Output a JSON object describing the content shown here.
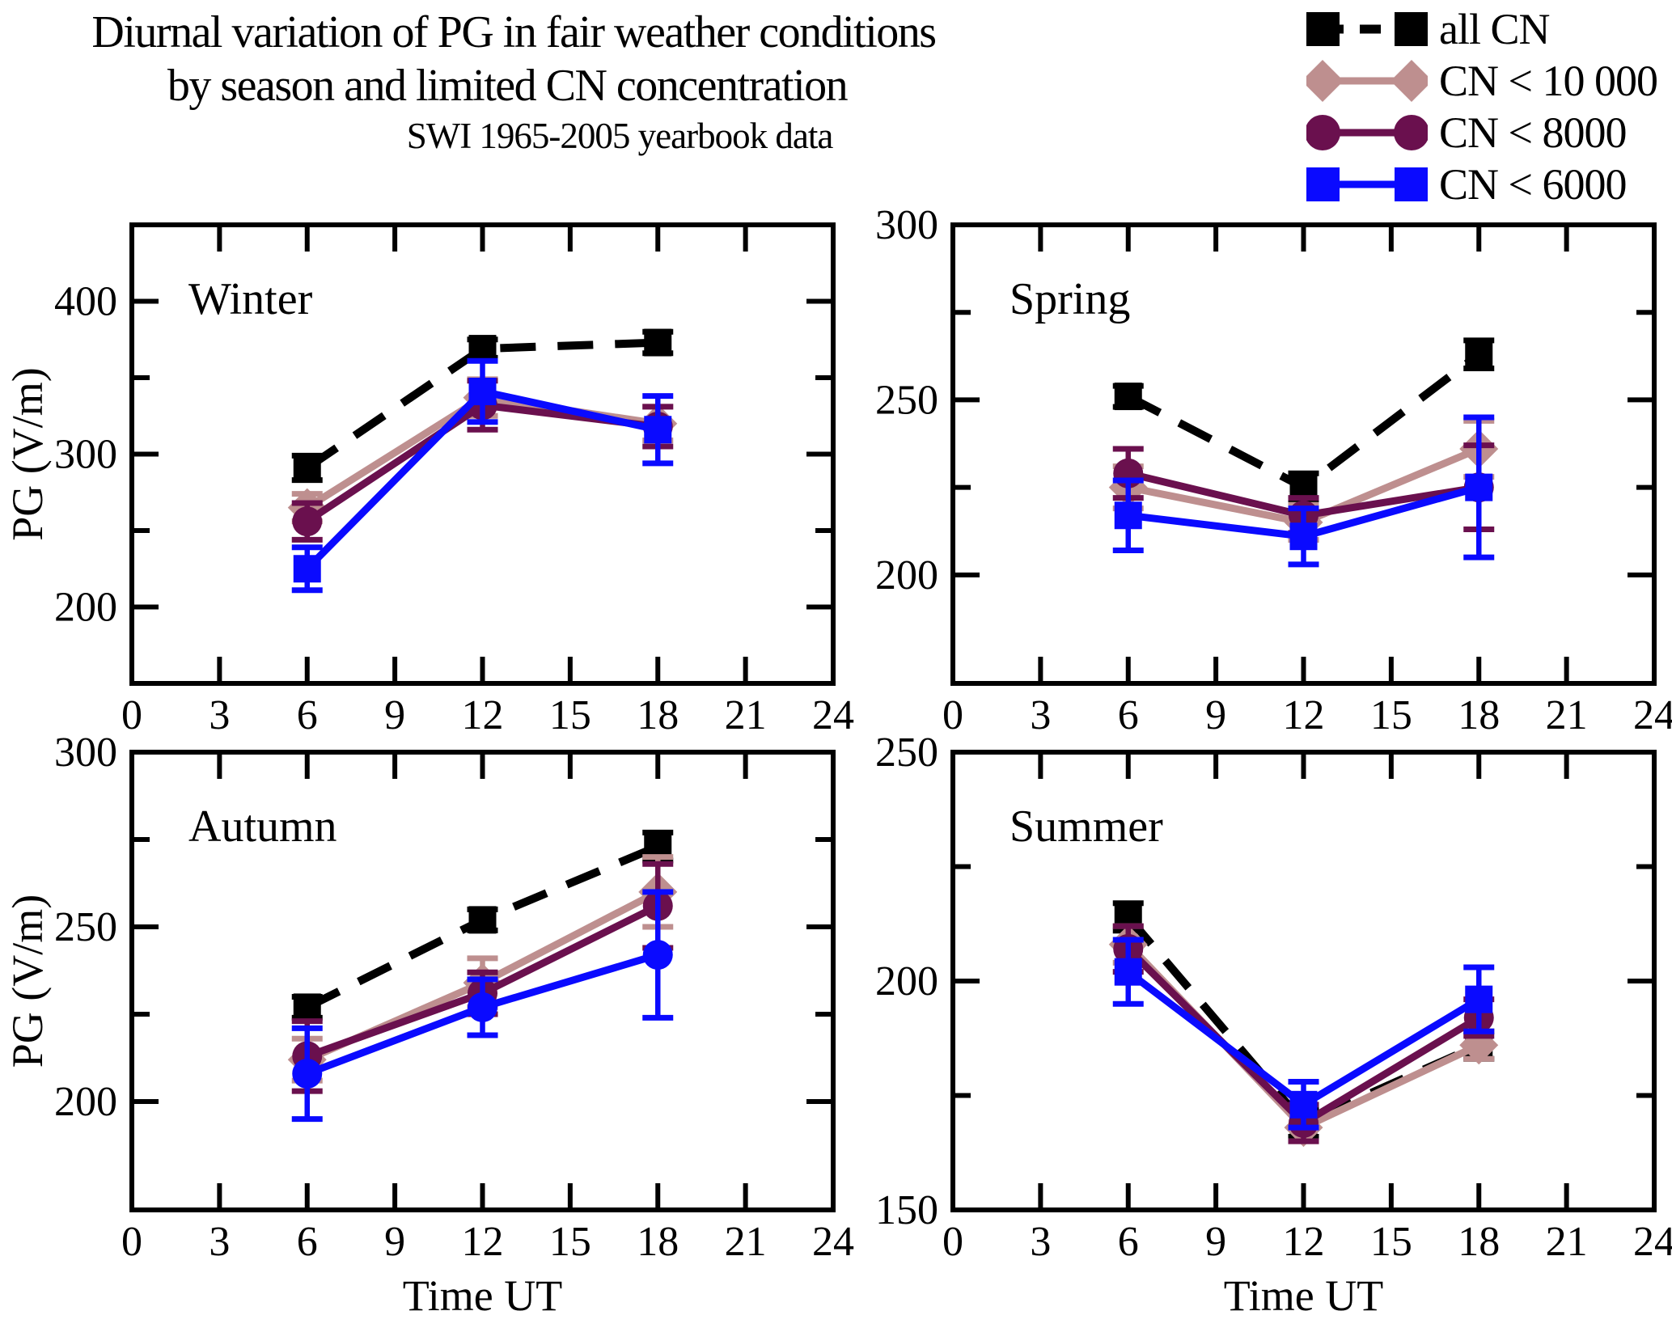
{
  "title": {
    "line1": "Diurnal variation of PG in fair weather conditions",
    "line2": "by season and limited CN concentration",
    "subtitle": "SWI 1965-2005 yearbook data"
  },
  "axis_labels": {
    "x": "Time UT",
    "y": "PG (V/m)"
  },
  "legend": {
    "items": [
      {
        "label": "all CN",
        "color": "#000000",
        "marker": "square",
        "line": "dashed"
      },
      {
        "label": "CN < 10 000",
        "color": "#BE8F8F",
        "marker": "diamond",
        "line": "solid"
      },
      {
        "label": "CN < 8000",
        "color": "#6A104E",
        "marker": "circle",
        "line": "solid"
      },
      {
        "label": "CN < 6000",
        "color": "#0A0AFF",
        "marker": "square",
        "line": "solid"
      }
    ]
  },
  "chart_data": [
    {
      "type": "line",
      "panel": "winter",
      "title": "Winter",
      "xlabel": "",
      "ylabel": "PG (V/m)",
      "x": [
        6,
        12,
        18
      ],
      "xlim": [
        0,
        24
      ],
      "ylim": [
        150,
        450
      ],
      "xticks": [
        0,
        3,
        6,
        9,
        12,
        15,
        18,
        21,
        24
      ],
      "yticks_major": [
        200,
        300,
        400
      ],
      "yticks_minor": [
        250,
        350
      ],
      "grid": false,
      "series": [
        {
          "name": "all CN",
          "color": "#000000",
          "marker": "square",
          "line": "dashed",
          "values": [
            291,
            369,
            373
          ],
          "errors": [
            8,
            6,
            7
          ]
        },
        {
          "name": "CN < 10 000",
          "color": "#BE8F8F",
          "marker": "diamond",
          "line": "solid",
          "values": [
            265,
            337,
            320
          ],
          "errors": [
            9,
            12,
            11
          ]
        },
        {
          "name": "CN < 8000",
          "color": "#6A104E",
          "marker": "circle",
          "line": "solid",
          "values": [
            256,
            332,
            318
          ],
          "errors": [
            12,
            16,
            13
          ]
        },
        {
          "name": "CN < 6000",
          "color": "#0A0AFF",
          "marker": "square",
          "line": "solid",
          "values": [
            225,
            341,
            316
          ],
          "errors": [
            14,
            20,
            22
          ]
        }
      ]
    },
    {
      "type": "line",
      "panel": "spring",
      "title": "Spring",
      "xlabel": "",
      "ylabel": "",
      "x": [
        6,
        12,
        18
      ],
      "xlim": [
        0,
        24
      ],
      "ylim": [
        169,
        300
      ],
      "xticks": [
        0,
        3,
        6,
        9,
        12,
        15,
        18,
        21,
        24
      ],
      "yticks_major": [
        200,
        250,
        300
      ],
      "yticks_minor": [
        225,
        275
      ],
      "grid": false,
      "series": [
        {
          "name": "all CN",
          "color": "#000000",
          "marker": "square",
          "line": "dashed",
          "values": [
            251,
            225,
            263
          ],
          "errors": [
            3,
            4,
            4
          ]
        },
        {
          "name": "CN < 10 000",
          "color": "#BE8F8F",
          "marker": "diamond",
          "line": "solid",
          "values": [
            225,
            215,
            236
          ],
          "errors": [
            6,
            5,
            8
          ]
        },
        {
          "name": "CN < 8000",
          "color": "#6A104E",
          "marker": "circle",
          "line": "solid",
          "values": [
            229,
            217,
            225
          ],
          "errors": [
            7,
            5,
            12
          ]
        },
        {
          "name": "CN < 6000",
          "color": "#0A0AFF",
          "marker": "square",
          "line": "solid",
          "values": [
            217,
            211,
            225
          ],
          "errors": [
            10,
            8,
            20
          ]
        }
      ]
    },
    {
      "type": "line",
      "panel": "autumn",
      "title": "Autumn",
      "xlabel": "Time UT",
      "ylabel": "PG (V/m)",
      "x": [
        6,
        12,
        18
      ],
      "xlim": [
        0,
        24
      ],
      "ylim": [
        169,
        300
      ],
      "xticks": [
        0,
        3,
        6,
        9,
        12,
        15,
        18,
        21,
        24
      ],
      "yticks_major": [
        200,
        250,
        300
      ],
      "yticks_minor": [
        225,
        275
      ],
      "grid": false,
      "series": [
        {
          "name": "all CN",
          "color": "#000000",
          "marker": "square",
          "line": "dashed",
          "values": [
            227,
            252,
            273
          ],
          "errors": [
            3,
            3,
            4
          ]
        },
        {
          "name": "CN < 10 000",
          "color": "#BE8F8F",
          "marker": "diamond",
          "line": "solid",
          "values": [
            212,
            234,
            260
          ],
          "errors": [
            6,
            7,
            10
          ]
        },
        {
          "name": "CN < 8000",
          "color": "#6A104E",
          "marker": "circle",
          "line": "solid",
          "values": [
            213,
            231,
            256
          ],
          "errors": [
            10,
            6,
            12
          ]
        },
        {
          "name": "CN < 6000",
          "color": "#0A0AFF",
          "marker": "circle",
          "line": "solid",
          "values": [
            208,
            227,
            242
          ],
          "errors": [
            13,
            8,
            18
          ]
        }
      ]
    },
    {
      "type": "line",
      "panel": "summer",
      "title": "Summer",
      "xlabel": "Time UT",
      "ylabel": "",
      "x": [
        6,
        12,
        18
      ],
      "xlim": [
        0,
        24
      ],
      "ylim": [
        150,
        250
      ],
      "xticks": [
        0,
        3,
        6,
        9,
        12,
        15,
        18,
        21,
        24
      ],
      "yticks_major": [
        150,
        200,
        250
      ],
      "yticks_minor": [
        175,
        225
      ],
      "grid": false,
      "series": [
        {
          "name": "all CN",
          "color": "#000000",
          "marker": "square",
          "line": "dashed",
          "values": [
            214,
            169,
            186
          ],
          "errors": [
            3,
            3,
            3
          ]
        },
        {
          "name": "CN < 10 000",
          "color": "#BE8F8F",
          "marker": "diamond",
          "line": "solid",
          "values": [
            208,
            168,
            186
          ],
          "errors": [
            4,
            3,
            3
          ]
        },
        {
          "name": "CN < 8000",
          "color": "#6A104E",
          "marker": "circle",
          "line": "solid",
          "values": [
            207,
            169,
            192
          ],
          "errors": [
            5,
            4,
            4
          ]
        },
        {
          "name": "CN < 6000",
          "color": "#0A0AFF",
          "marker": "square",
          "line": "solid",
          "values": [
            202,
            173,
            196
          ],
          "errors": [
            7,
            5,
            7
          ]
        }
      ]
    }
  ]
}
